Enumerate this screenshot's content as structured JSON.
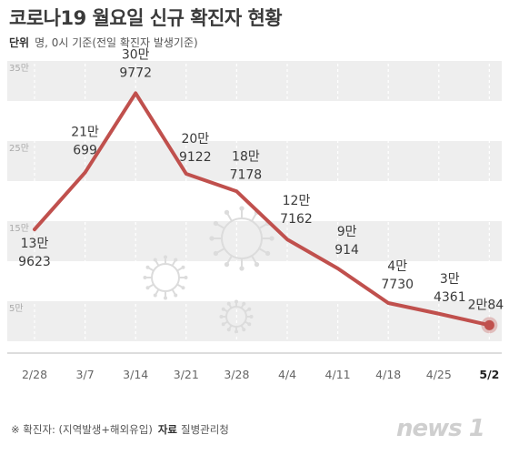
{
  "title": "코로나19 월요일 신규 확진자 현황",
  "unit_label": "단위",
  "unit_text": "명, 0시 기준(전일 확진자 발생기준)",
  "footer": {
    "note": "※ 확진자: (지역발생+해외유입)",
    "source_label": "자료",
    "source": "질병관리청"
  },
  "logo": "news 1",
  "colors": {
    "line": "#c0504d",
    "band": "#eeeeee",
    "text": "#333333"
  },
  "chart_data": {
    "type": "line",
    "x": [
      "2/28",
      "3/7",
      "3/14",
      "3/21",
      "3/28",
      "4/4",
      "4/11",
      "4/18",
      "4/25",
      "5/2"
    ],
    "y": [
      139623,
      210699,
      309772,
      209122,
      187178,
      127162,
      90914,
      47730,
      34361,
      20084
    ],
    "data_labels": [
      [
        "13만",
        "9623"
      ],
      [
        "21만",
        "699"
      ],
      [
        "30만",
        "9772"
      ],
      [
        "20만",
        "9122"
      ],
      [
        "18만",
        "7178"
      ],
      [
        "12만",
        "7162"
      ],
      [
        "9만",
        "914"
      ],
      [
        "4만",
        "7730"
      ],
      [
        "3만",
        "4361"
      ],
      [
        "2만84"
      ]
    ],
    "y_ticks": [
      "35만",
      "25만",
      "15만",
      "5만"
    ],
    "ylim": [
      0,
      350000
    ],
    "highlight_last": true
  }
}
